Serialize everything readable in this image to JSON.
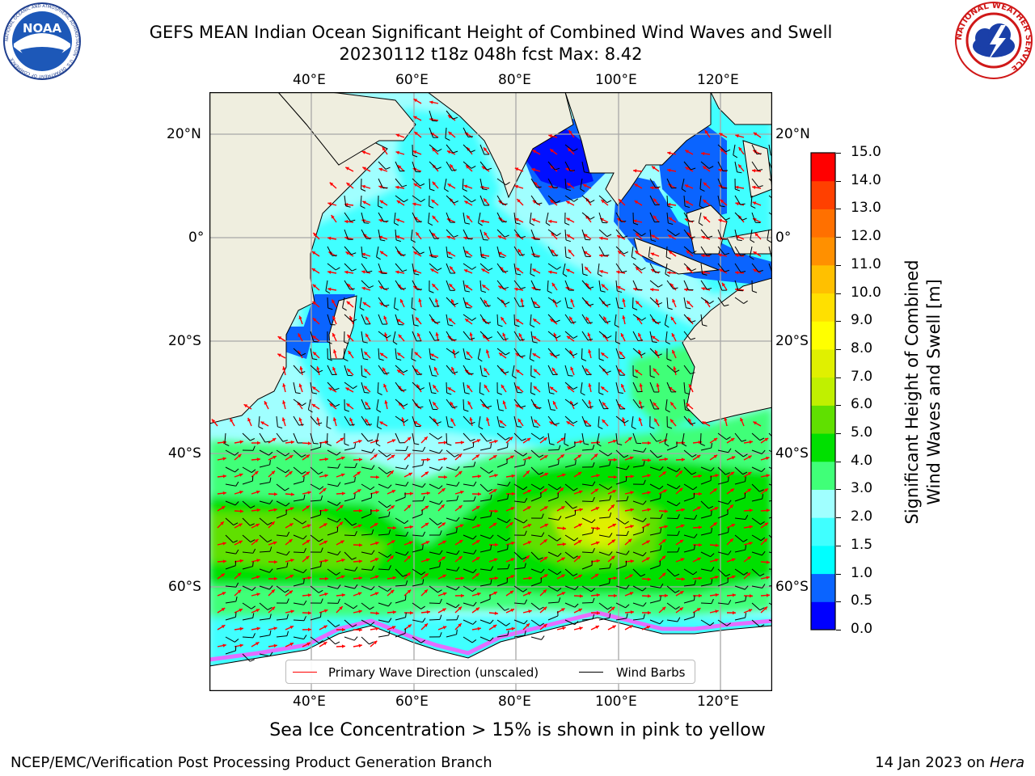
{
  "title": {
    "line1": "GEFS MEAN Indian Ocean Significant Height of Combined Wind Waves and Swell",
    "line2": "20230112 t18z 048h fcst   Max: 8.42"
  },
  "logos": {
    "noaa": {
      "text": "NOAA",
      "ring_text": "NATIONAL OCEANIC AND ATMOSPHERIC ADMINISTRATION · U.S. DEPARTMENT OF COMMERCE"
    },
    "nws": {
      "ring_text": "NATIONAL WEATHER SERVICE"
    }
  },
  "map": {
    "lon_labels": [
      "40°E",
      "60°E",
      "80°E",
      "100°E",
      "120°E"
    ],
    "lat_labels": [
      "20°N",
      "0°",
      "20°S",
      "40°S",
      "60°S"
    ],
    "background_colors": {
      "land": "#efeedf",
      "ice_free": "#ffffff",
      "sea_ice": "#ff55ff"
    }
  },
  "legend": {
    "items": [
      {
        "label": "Primary Wave Direction (unscaled)",
        "color": "#ff0000"
      },
      {
        "label": "Wind Barbs",
        "color": "#000000"
      }
    ]
  },
  "colorbar": {
    "title_line1": "Significant Height of Combined",
    "title_line2": "Wind Waves and Swell [m]",
    "ticks": [
      "0.0",
      "0.5",
      "1.0",
      "1.5",
      "2.0",
      "3.0",
      "4.0",
      "5.0",
      "6.0",
      "7.0",
      "8.0",
      "9.0",
      "10.0",
      "11.0",
      "12.0",
      "13.0",
      "14.0",
      "15.0"
    ],
    "colors": [
      "#0000ff",
      "#0a64ff",
      "#00ffff",
      "#40ffff",
      "#a0ffff",
      "#40ff78",
      "#00e000",
      "#60e000",
      "#c0f000",
      "#e0f000",
      "#ffff00",
      "#ffe000",
      "#ffc000",
      "#ff9000",
      "#ff7000",
      "#ff4000",
      "#ff0000"
    ]
  },
  "note": "Sea Ice Concentration > 15% is shown in pink to yellow",
  "footer": {
    "left": "NCEP/EMC/Verification Post Processing Product Generation Branch",
    "right_prefix": "14 Jan 2023 on ",
    "right_italic": "Hera"
  }
}
